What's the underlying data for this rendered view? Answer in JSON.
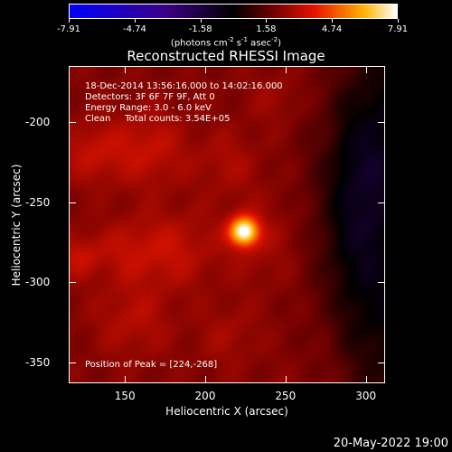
{
  "colorbar": {
    "tick_labels": [
      "-7.91",
      "-4.74",
      "-1.58",
      "1.58",
      "4.74",
      "7.91"
    ],
    "units_prefix": "(photons cm",
    "units_exp1": "-2",
    "units_mid1": " s",
    "units_exp2": "-1",
    "units_mid2": " asec",
    "units_exp3": "-2",
    "units_suffix": ")",
    "min": -7.91,
    "max": 7.91
  },
  "title": "Reconstructed RHESSI Image",
  "info": {
    "time": "18-Dec-2014 13:56:16.000 to 14:02:16.000",
    "detectors": "Detectors: 3F 6F 7F 9F, Att 0",
    "energy": "Energy Range: 3.0 - 6.0 keV",
    "clean": "Clean     Total counts: 3.54E+05"
  },
  "peak_text": "Position of Peak = [224,-268]",
  "axes": {
    "x_label": "Heliocentric X (arcsec)",
    "y_label": "Heliocentric Y (arcsec)",
    "x_ticks": [
      "150",
      "200",
      "250",
      "300"
    ],
    "y_ticks": [
      "-200",
      "-250",
      "-300",
      "-350"
    ],
    "x_range": [
      115,
      312
    ],
    "y_range": [
      -363,
      -165
    ]
  },
  "peak": {
    "x": 224,
    "y": -268
  },
  "date_stamp": "20-May-2022 19:00"
}
